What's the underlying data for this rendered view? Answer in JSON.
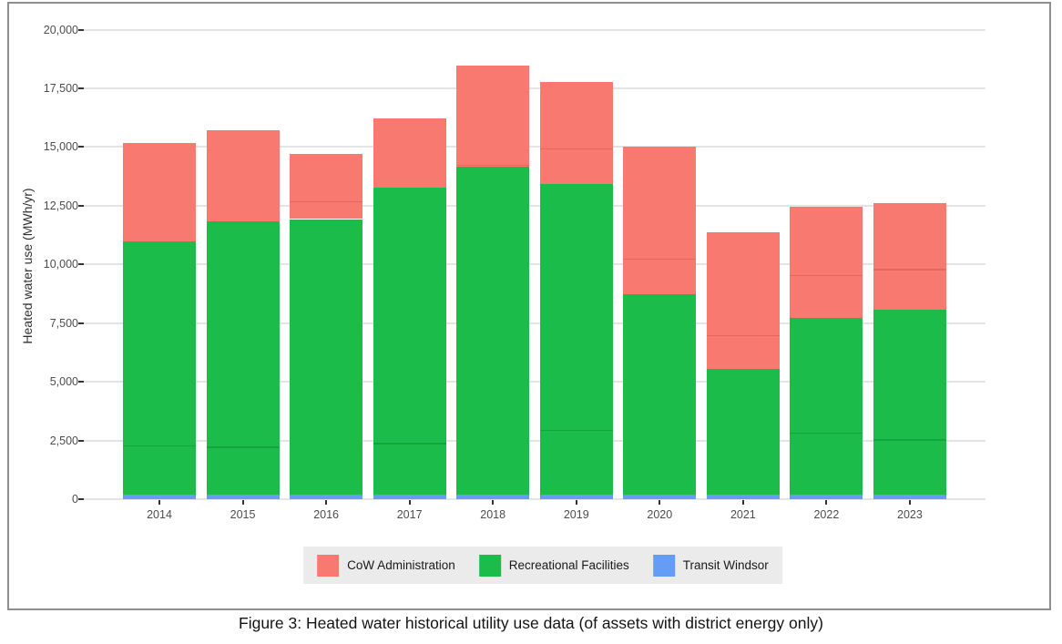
{
  "figure": {
    "caption": "Figure 3: Heated water historical utility use data (of assets with district energy only)"
  },
  "chart_data": {
    "type": "bar",
    "stacked": true,
    "title": "",
    "xlabel": "",
    "ylabel": "Heated water use (MWh/yr)",
    "ylim": [
      0,
      20000
    ],
    "ytick_step": 2500,
    "yticks": [
      0,
      2500,
      5000,
      7500,
      10000,
      12500,
      15000,
      17500,
      20000
    ],
    "ytick_labels": [
      "0",
      "2,500",
      "5,000",
      "7,500",
      "10,000",
      "12,500",
      "15,000",
      "17,500",
      "20,000"
    ],
    "grid": "horizontal-major-only",
    "legend_position": "bottom",
    "categories": [
      "2014",
      "2015",
      "2016",
      "2017",
      "2018",
      "2019",
      "2020",
      "2021",
      "2022",
      "2023"
    ],
    "series": [
      {
        "name": "CoW Administration",
        "color": "#F8796F",
        "values": [
          4180,
          3860,
          2790,
          2930,
          4290,
          4340,
          6290,
          5830,
          4710,
          4510
        ]
      },
      {
        "name": "Recreational Facilities",
        "color": "#1BBC4A",
        "values": [
          10780,
          11630,
          11720,
          13060,
          13950,
          13210,
          8500,
          5340,
          7520,
          7870
        ]
      },
      {
        "name": "Transit Windsor",
        "color": "#659CF6",
        "values": [
          210,
          210,
          210,
          210,
          210,
          210,
          210,
          210,
          210,
          210
        ]
      }
    ],
    "stack_order_bottom_to_top": [
      "Transit Windsor",
      "Recreational Facilities",
      "CoW Administration"
    ],
    "totals": [
      15170,
      15700,
      14720,
      16200,
      18450,
      17760,
      15000,
      11380,
      12440,
      12590
    ],
    "segment_seams": [
      {
        "year": "2014",
        "series": "Recreational Facilities",
        "value": 2300
      },
      {
        "year": "2015",
        "series": "Recreational Facilities",
        "value": 2250
      },
      {
        "year": "2016",
        "series": "CoW Administration",
        "value": 12700
      },
      {
        "year": "2017",
        "series": "Recreational Facilities",
        "value": 2400
      },
      {
        "year": "2018",
        "series": "CoW Administration",
        "value": 14250
      },
      {
        "year": "2019",
        "series": "CoW Administration",
        "value": 14950
      },
      {
        "year": "2019",
        "series": "Recreational Facilities",
        "value": 2950
      },
      {
        "year": "2020",
        "series": "CoW Administration",
        "value": 10250
      },
      {
        "year": "2021",
        "series": "CoW Administration",
        "value": 7000
      },
      {
        "year": "2022",
        "series": "CoW Administration",
        "value": 9550
      },
      {
        "year": "2022",
        "series": "Recreational Facilities",
        "value": 2850
      },
      {
        "year": "2023",
        "series": "CoW Administration",
        "value": 9800
      },
      {
        "year": "2023",
        "series": "Recreational Facilities",
        "value": 2550
      }
    ],
    "colors": {
      "gridline": "#e4e4e4",
      "tick_mark": "#333333",
      "tick_label": "#4d4d4d",
      "legend_background": "#ebebeb",
      "figure_border": "#8f8f8f",
      "panel_background": "#ffffff"
    }
  }
}
